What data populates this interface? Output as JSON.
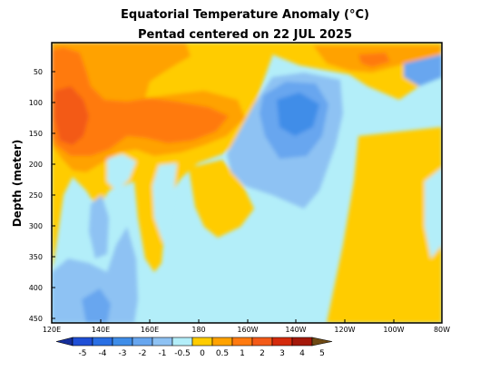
{
  "chart_data": {
    "type": "heatmap",
    "title": "Equatorial Temperature Anomaly (°C)",
    "subtitle": "Pentad centered on 22 JUL 2025",
    "xlabel": "",
    "ylabel": "Depth (meter)",
    "x_ticks": [
      "120E",
      "140E",
      "160E",
      "180",
      "160W",
      "140W",
      "120W",
      "100W",
      "80W"
    ],
    "x_range_deg_east": [
      120,
      280
    ],
    "y_ticks": [
      "50",
      "100",
      "150",
      "200",
      "250",
      "300",
      "350",
      "400",
      "450"
    ],
    "y_range_m": [
      0,
      460
    ],
    "y_inverted": true,
    "colorbar": {
      "levels": [
        "-5",
        "-4",
        "-3",
        "-2",
        "-1",
        "-0.5",
        "0",
        "0.5",
        "1",
        "2",
        "3",
        "4",
        "5"
      ],
      "colors": [
        "#152e9a",
        "#1f4fd6",
        "#2a6fe4",
        "#3f8de8",
        "#67a6ef",
        "#8ec2f3",
        "#b3eef9",
        "#ffcc00",
        "#ffa200",
        "#ff7a10",
        "#f35a18",
        "#d42a0c",
        "#a4180a",
        "#6f4a14"
      ]
    },
    "regions": [
      {
        "desc": "warm anomaly, western Pacific thermocline",
        "lon": 125,
        "depth_m": 130,
        "value": 2
      },
      {
        "desc": "warm anomaly, west-central Pacific",
        "lon": 158,
        "depth_m": 120,
        "value": 1
      },
      {
        "desc": "cool anomaly, central Pacific",
        "lon": 212,
        "depth_m": 120,
        "value": -1
      },
      {
        "desc": "warm anomaly, eastern Pacific below 150 m",
        "lon": 262,
        "depth_m": 300,
        "value": 0.5
      },
      {
        "desc": "cool anomaly, deep western Pacific",
        "lon": 140,
        "depth_m": 380,
        "value": -0.5
      },
      {
        "desc": "warm anomaly, near-surface eastern Pacific",
        "lon": 248,
        "depth_m": 30,
        "value": 1
      }
    ]
  }
}
